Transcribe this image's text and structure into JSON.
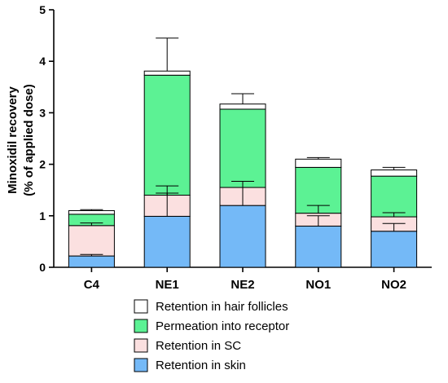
{
  "chart_data": {
    "type": "bar",
    "stacked": true,
    "categories": [
      "C4",
      "NE1",
      "NE2",
      "NO1",
      "NO2"
    ],
    "ylabel_line1": "Minoxidil recovery",
    "ylabel_line2": "(% of applied dose)",
    "ylim": [
      0,
      5
    ],
    "yticks": [
      "0",
      "1",
      "2",
      "3",
      "4",
      "5"
    ],
    "series": [
      {
        "name": "Retention in skin",
        "color": "#74b9f7",
        "values": [
          0.22,
          0.99,
          1.2,
          0.8,
          0.7
        ],
        "errors": [
          0.03,
          0.45,
          0.47,
          0.2,
          0.15
        ]
      },
      {
        "name": "Retention in SC",
        "color": "#fbe0e0",
        "values": [
          0.59,
          0.41,
          0.35,
          0.25,
          0.28
        ],
        "errors": [
          0.05,
          0.18,
          0.12,
          0.15,
          0.08
        ]
      },
      {
        "name": "Permeation into receptor",
        "color": "#5cf294",
        "values": [
          0.22,
          2.33,
          1.52,
          0.89,
          0.79
        ],
        "errors": [
          0.0,
          0.0,
          0.0,
          0.0,
          0.0
        ]
      },
      {
        "name": "Retention in hair follicles",
        "color": "#ffffff",
        "values": [
          0.07,
          0.08,
          0.1,
          0.16,
          0.12
        ],
        "errors": [
          0.02,
          0.64,
          0.2,
          0.03,
          0.05
        ]
      }
    ],
    "legend_order": [
      3,
      2,
      1,
      0
    ],
    "legend_position": "bottom"
  }
}
